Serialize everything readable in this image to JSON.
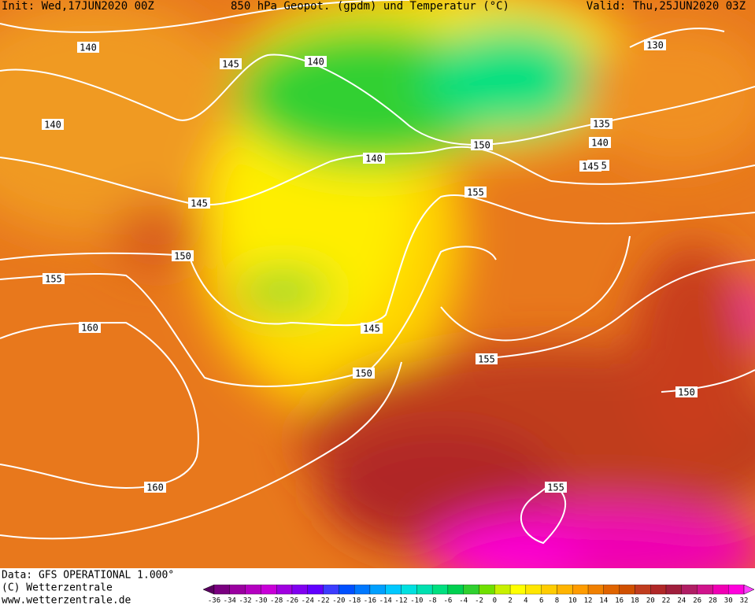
{
  "header": {
    "init": "Init: Wed,17JUN2020 00Z",
    "title": "850 hPa Geopot. (gpdm) und Temperatur (°C)",
    "valid": "Valid: Thu,25JUN2020 03Z"
  },
  "footer": {
    "data": "Data: GFS OPERATIONAL 1.000°",
    "copyright": "(C) Wetterzentrale",
    "url": "www.wetterzentrale.de"
  },
  "colorbar": {
    "ticks": [
      -36,
      -34,
      -32,
      -30,
      -28,
      -26,
      -24,
      -22,
      -20,
      -18,
      -16,
      -14,
      -12,
      -10,
      -8,
      -6,
      -4,
      -2,
      0,
      2,
      4,
      6,
      8,
      10,
      12,
      14,
      16,
      18,
      20,
      22,
      24,
      26,
      28,
      30,
      32
    ],
    "colors": [
      "#5a0060",
      "#7a0080",
      "#9a00a0",
      "#b400c0",
      "#c800d8",
      "#a000e0",
      "#8000f0",
      "#6000ff",
      "#3c3cff",
      "#0050ff",
      "#0078ff",
      "#00a0ff",
      "#00c8ff",
      "#00e0e0",
      "#00e0b0",
      "#00e080",
      "#00d050",
      "#30d030",
      "#70e000",
      "#c8f000",
      "#ffff00",
      "#ffe600",
      "#ffcc00",
      "#ffb400",
      "#ff9c00",
      "#f08000",
      "#e06400",
      "#d05000",
      "#c03c1e",
      "#b02828",
      "#a01e3c",
      "#b01e64",
      "#d0148c",
      "#f000b4",
      "#ff00dc",
      "#ff40ff"
    ]
  },
  "contour_labels": [
    140,
    145,
    140,
    140,
    145,
    140,
    150,
    145,
    155,
    155,
    160,
    160,
    150,
    145,
    150,
    155,
    150,
    130,
    135,
    140,
    145,
    155
  ]
}
